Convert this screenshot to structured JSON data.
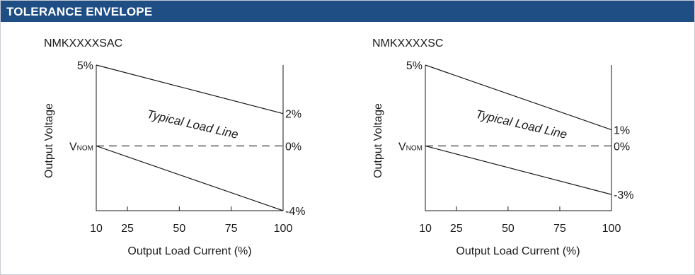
{
  "header": {
    "title": "TOLERANCE ENVELOPE"
  },
  "colors": {
    "header_bg": "#1f4e85",
    "line": "#1a1a1a"
  },
  "chart_data": [
    {
      "type": "line",
      "title": "NMKXXXXSAC",
      "xlabel": "Output Load Current (%)",
      "ylabel": "Output Voltage",
      "x_ticks": [
        "10",
        "25",
        "50",
        "75",
        "100"
      ],
      "xlim": [
        10,
        100
      ],
      "ylim": [
        -4,
        5
      ],
      "left_labels": {
        "top": "5%",
        "nominal": "V",
        "nominal_sub": "NOM"
      },
      "right_labels": [
        "2%",
        "0%",
        "-4%"
      ],
      "annotation": "Typical Load Line",
      "series": [
        {
          "x": [
            10,
            100
          ],
          "y": [
            5,
            2
          ],
          "style": "solid"
        },
        {
          "x": [
            10,
            100
          ],
          "y": [
            0,
            -4
          ],
          "style": "solid"
        },
        {
          "x": [
            10,
            100
          ],
          "y": [
            0,
            0
          ],
          "style": "dashed"
        }
      ]
    },
    {
      "type": "line",
      "title": "NMKXXXXSC",
      "xlabel": "Output Load Current (%)",
      "ylabel": "Output Voltage",
      "x_ticks": [
        "10",
        "25",
        "50",
        "75",
        "100"
      ],
      "xlim": [
        10,
        100
      ],
      "ylim": [
        -4,
        5
      ],
      "left_labels": {
        "top": "5%",
        "nominal": "V",
        "nominal_sub": "NOM"
      },
      "right_labels": [
        "1%",
        "0%",
        "-3%"
      ],
      "annotation": "Typical Load Line",
      "series": [
        {
          "x": [
            10,
            100
          ],
          "y": [
            5,
            1
          ],
          "style": "solid"
        },
        {
          "x": [
            10,
            100
          ],
          "y": [
            0,
            -3
          ],
          "style": "solid"
        },
        {
          "x": [
            10,
            100
          ],
          "y": [
            0,
            0
          ],
          "style": "dashed"
        }
      ]
    }
  ]
}
